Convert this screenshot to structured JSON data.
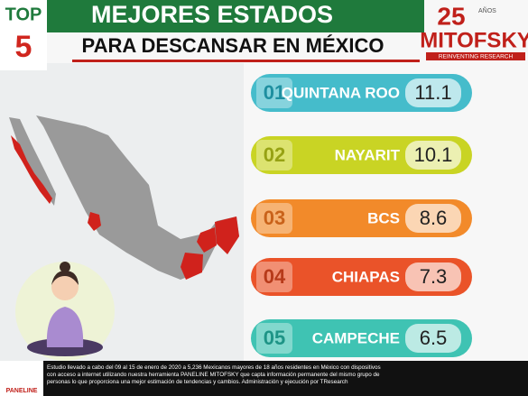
{
  "badge": {
    "top": "TOP",
    "number": "5"
  },
  "header": {
    "title": "MEJORES ESTADOS",
    "subtitle": "PARA DESCANSAR EN MÉXICO"
  },
  "logo": {
    "years": "25",
    "years_label": "AÑOS",
    "brand": "MITOFSKY",
    "tagline": "REINVENTING RESEARCH"
  },
  "ranking": [
    {
      "rank": "01",
      "state": "QUINTANA ROO",
      "score": 11.1,
      "color": "#45bccb",
      "dark": "#1e8fa0"
    },
    {
      "rank": "02",
      "state": "NAYARIT",
      "score": 10.1,
      "color": "#c9d424",
      "dark": "#97a214"
    },
    {
      "rank": "03",
      "state": "BCS",
      "score": 8.6,
      "color": "#f28a2a",
      "dark": "#c9621a"
    },
    {
      "rank": "04",
      "state": "CHIAPAS",
      "score": 7.3,
      "color": "#ea5329",
      "dark": "#b73a1a"
    },
    {
      "rank": "05",
      "state": "CAMPECHE",
      "score": 6.5,
      "color": "#3fc3b3",
      "dark": "#1e9486"
    }
  ],
  "footer": {
    "logo": "PANELINE",
    "note": "Estudio llevado a cabo del 09 al 15 de enero de 2020 a 5,236 Mexicanos mayores de 18 años residentes en México con dispositivos con acceso a internet utilizando nuestra herramienta PANELINE MITOFSKY que capta información permanente del mismo grupo de personas lo que proporciona una mejor estimación de tendencias y cambios. Administración y ejecución por TResearch"
  }
}
